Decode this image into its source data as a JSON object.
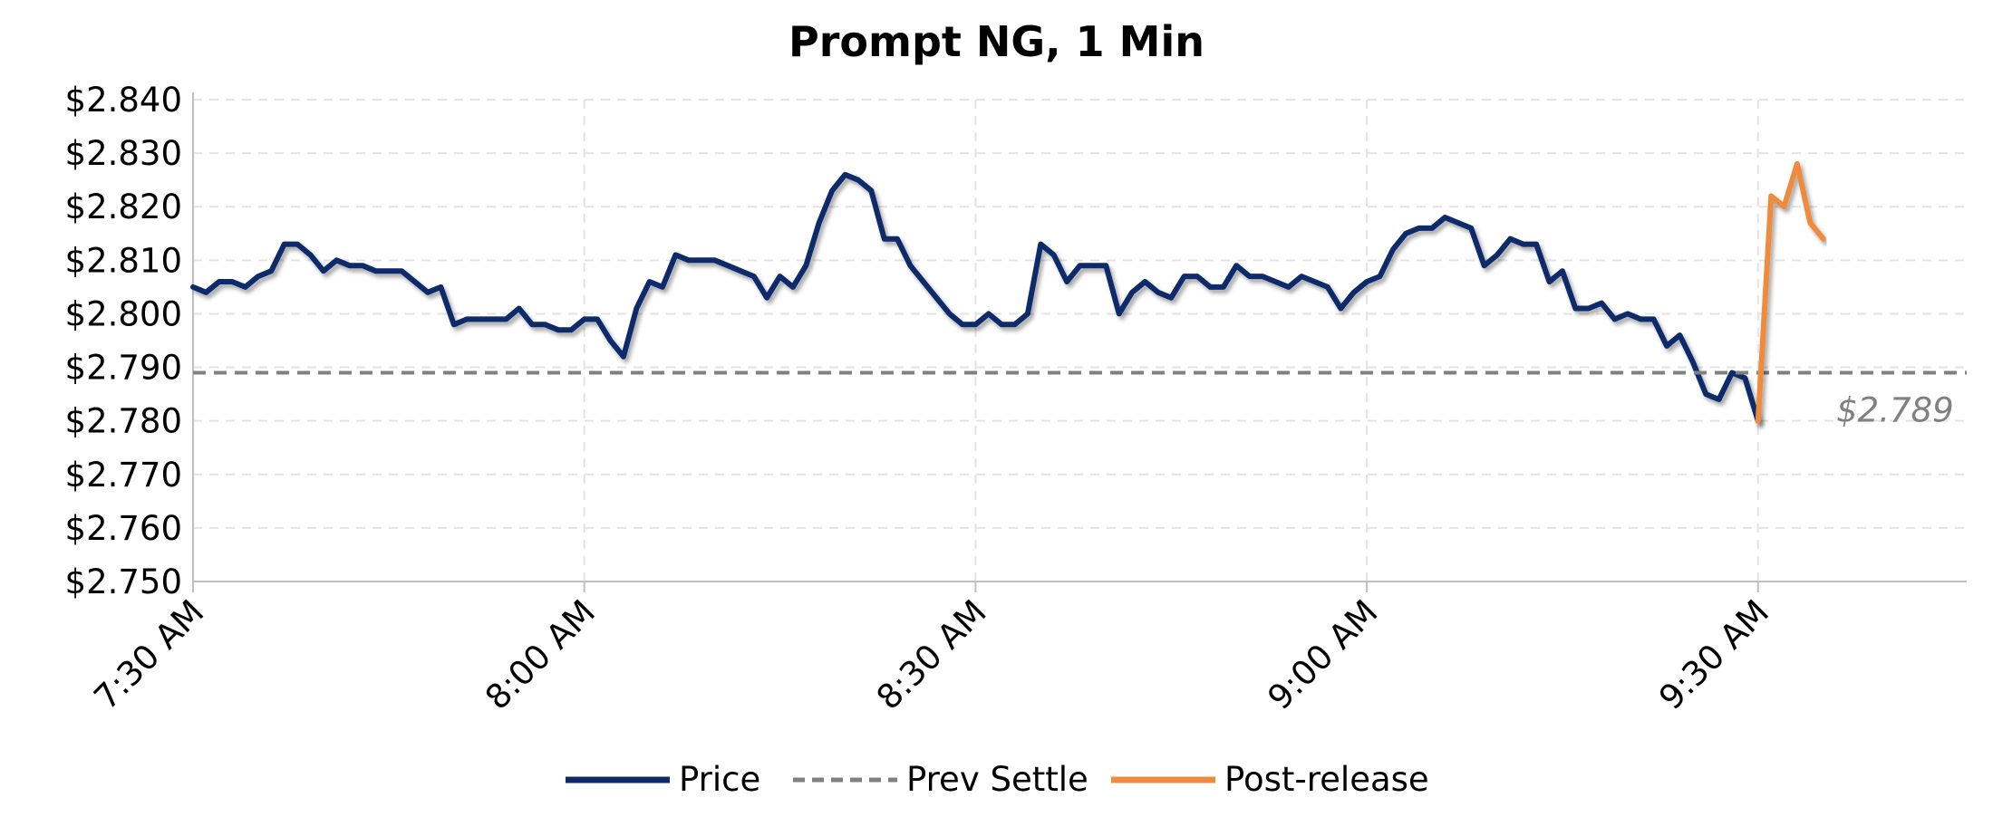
{
  "chart_data": {
    "type": "line",
    "title": "Prompt NG, 1 Min",
    "xlabel": "",
    "ylabel": "",
    "x_unit": "minutes after 7:30 AM",
    "xlim": [
      0,
      136
    ],
    "ylim": [
      2.75,
      2.84
    ],
    "yticks": [
      2.75,
      2.76,
      2.77,
      2.78,
      2.79,
      2.8,
      2.81,
      2.82,
      2.83,
      2.84
    ],
    "ytick_labels": [
      "$2.750",
      "$2.760",
      "$2.770",
      "$2.780",
      "$2.790",
      "$2.800",
      "$2.810",
      "$2.820",
      "$2.830",
      "$2.840"
    ],
    "xticks": [
      0,
      30,
      60,
      90,
      120
    ],
    "xtick_labels": [
      "7:30 AM",
      "8:00 AM",
      "8:30 AM",
      "9:00 AM",
      "9:30 AM"
    ],
    "grid": true,
    "legend_position": "bottom",
    "series": [
      {
        "name": "Price",
        "color": "#0F2A6B",
        "x": [
          0,
          1,
          2,
          3,
          4,
          5,
          6,
          7,
          8,
          9,
          10,
          11,
          12,
          13,
          14,
          15,
          16,
          17,
          18,
          19,
          20,
          21,
          22,
          23,
          24,
          25,
          26,
          27,
          28,
          29,
          30,
          31,
          32,
          33,
          34,
          35,
          36,
          37,
          38,
          39,
          40,
          41,
          42,
          43,
          44,
          45,
          46,
          47,
          48,
          49,
          50,
          51,
          52,
          53,
          54,
          55,
          56,
          57,
          58,
          59,
          60,
          61,
          62,
          63,
          64,
          65,
          66,
          67,
          68,
          69,
          70,
          71,
          72,
          73,
          74,
          75,
          76,
          77,
          78,
          79,
          80,
          81,
          82,
          83,
          84,
          85,
          86,
          87,
          88,
          89,
          90,
          91,
          92,
          93,
          94,
          95,
          96,
          97,
          98,
          99,
          100,
          101,
          102,
          103,
          104,
          105,
          106,
          107,
          108,
          109,
          110,
          111,
          112,
          113,
          114,
          115,
          116,
          117,
          118,
          119,
          120
        ],
        "values": [
          2.805,
          2.804,
          2.806,
          2.806,
          2.805,
          2.807,
          2.808,
          2.813,
          2.813,
          2.811,
          2.808,
          2.81,
          2.809,
          2.809,
          2.808,
          2.808,
          2.808,
          2.806,
          2.804,
          2.805,
          2.798,
          2.799,
          2.799,
          2.799,
          2.799,
          2.801,
          2.798,
          2.798,
          2.797,
          2.797,
          2.799,
          2.799,
          2.795,
          2.792,
          2.801,
          2.806,
          2.805,
          2.811,
          2.81,
          2.81,
          2.81,
          2.809,
          2.808,
          2.807,
          2.803,
          2.807,
          2.805,
          2.809,
          2.817,
          2.823,
          2.826,
          2.825,
          2.823,
          2.814,
          2.814,
          2.809,
          2.806,
          2.803,
          2.8,
          2.798,
          2.798,
          2.8,
          2.798,
          2.798,
          2.8,
          2.813,
          2.811,
          2.806,
          2.809,
          2.809,
          2.809,
          2.8,
          2.804,
          2.806,
          2.804,
          2.803,
          2.807,
          2.807,
          2.805,
          2.805,
          2.809,
          2.807,
          2.807,
          2.806,
          2.805,
          2.807,
          2.806,
          2.805,
          2.801,
          2.804,
          2.806,
          2.807,
          2.812,
          2.815,
          2.816,
          2.816,
          2.818,
          2.817,
          2.816,
          2.809,
          2.811,
          2.814,
          2.813,
          2.813,
          2.806,
          2.808,
          2.801,
          2.801,
          2.802,
          2.799,
          2.8,
          2.799,
          2.799,
          2.794,
          2.796,
          2.791,
          2.785,
          2.784,
          2.789,
          2.788,
          2.78
        ]
      },
      {
        "name": "Prev Settle",
        "color": "#808080",
        "dashed": true,
        "x": [
          0,
          136
        ],
        "values": [
          2.789,
          2.789
        ]
      },
      {
        "name": "Post-release",
        "color": "#F08A3C",
        "x": [
          120,
          121,
          122,
          123,
          124,
          125
        ],
        "values": [
          2.78,
          2.822,
          2.82,
          2.828,
          2.817,
          2.814
        ]
      }
    ],
    "annotations": [
      {
        "text": "$2.789",
        "x": 135,
        "y": 2.789,
        "color": "#808080"
      }
    ]
  }
}
